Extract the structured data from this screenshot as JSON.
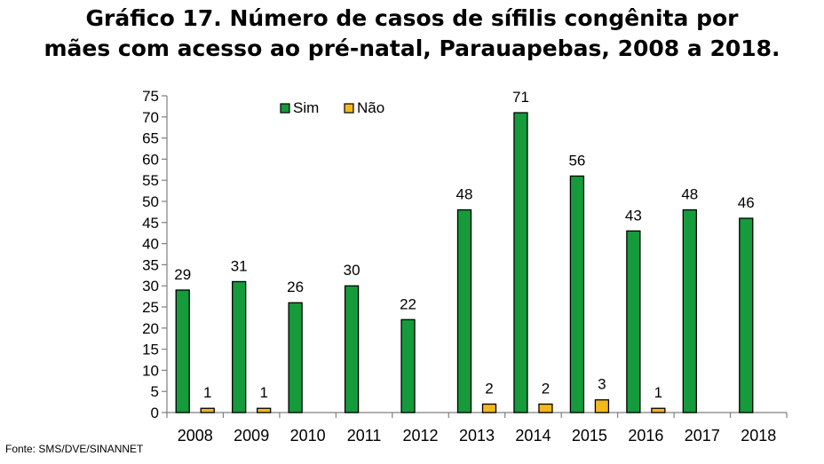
{
  "title_line1": "Gráfico 17. Número de casos de sífilis congênita por",
  "title_line2": "mães com acesso ao pré-natal, Parauapebas, 2008 a 2018.",
  "source": "Fonte: SMS/DVE/SINANNET",
  "chart_data": {
    "type": "bar",
    "categories": [
      "2008",
      "2009",
      "2010",
      "2011",
      "2012",
      "2013",
      "2014",
      "2015",
      "2016",
      "2017",
      "2018"
    ],
    "series": [
      {
        "name": "Sim",
        "color": "#159a3c",
        "values": [
          29,
          31,
          26,
          30,
          22,
          48,
          71,
          56,
          43,
          48,
          46
        ]
      },
      {
        "name": "Não",
        "color": "#f2b81f",
        "values": [
          1,
          1,
          0,
          0,
          0,
          2,
          2,
          3,
          1,
          0,
          0
        ]
      }
    ],
    "ylim": [
      0,
      75
    ],
    "yticks": [
      0,
      5,
      10,
      15,
      20,
      25,
      30,
      35,
      40,
      45,
      50,
      55,
      60,
      65,
      70,
      75
    ],
    "legend_position": "top-left",
    "data_labels": true,
    "grid": false
  }
}
